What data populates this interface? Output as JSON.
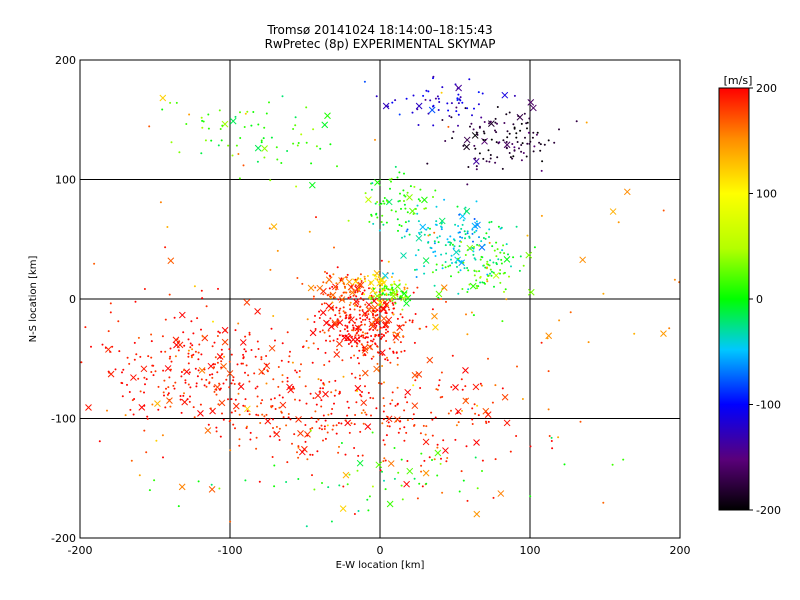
{
  "chart_data": {
    "type": "scatter",
    "title": "Tromsø 20141024 18:14:00–18:15:43",
    "subtitle": "RwPretec (8p) EXPERIMENTAL SKYMAP",
    "xlabel": "E-W location [km]",
    "ylabel": "N-S location [km]",
    "xlim": [
      -200,
      200
    ],
    "ylim": [
      -200,
      200
    ],
    "xticks": [
      "-200",
      "-100",
      "0",
      "100",
      "200"
    ],
    "yticks": [
      "-200",
      "-100",
      "0",
      "100",
      "200"
    ],
    "grid": true,
    "colorbar": {
      "label": "[m/s]",
      "range": [
        -200,
        200
      ],
      "ticks": [
        "200",
        "100",
        "0",
        "-100",
        "-200"
      ]
    },
    "point_groups": [
      {
        "center_x": -10,
        "center_y": -20,
        "spread_x": 25,
        "spread_y": 25,
        "count": 320,
        "velocity": 195
      },
      {
        "center_x": -120,
        "center_y": -60,
        "spread_x": 55,
        "spread_y": 45,
        "count": 280,
        "velocity": 195
      },
      {
        "center_x": -40,
        "center_y": -90,
        "spread_x": 60,
        "spread_y": 40,
        "count": 200,
        "velocity": 190
      },
      {
        "center_x": 30,
        "center_y": -100,
        "spread_x": 60,
        "spread_y": 50,
        "count": 140,
        "velocity": 190
      },
      {
        "center_x": -30,
        "center_y": 10,
        "spread_x": 20,
        "spread_y": 15,
        "count": 70,
        "velocity": 180
      },
      {
        "center_x": 0,
        "center_y": 10,
        "spread_x": 12,
        "spread_y": 10,
        "count": 60,
        "velocity": 120
      },
      {
        "center_x": 10,
        "center_y": 5,
        "spread_x": 10,
        "spread_y": 8,
        "count": 60,
        "velocity": 20
      },
      {
        "center_x": 50,
        "center_y": 45,
        "spread_x": 30,
        "spread_y": 25,
        "count": 160,
        "velocity": -40
      },
      {
        "center_x": 70,
        "center_y": 25,
        "spread_x": 25,
        "spread_y": 20,
        "count": 80,
        "velocity": 20
      },
      {
        "center_x": 10,
        "center_y": 80,
        "spread_x": 20,
        "spread_y": 20,
        "count": 70,
        "velocity": 10
      },
      {
        "center_x": 80,
        "center_y": 135,
        "spread_x": 30,
        "spread_y": 20,
        "count": 120,
        "velocity": -180
      },
      {
        "center_x": 40,
        "center_y": 165,
        "spread_x": 30,
        "spread_y": 15,
        "count": 60,
        "velocity": -120
      },
      {
        "center_x": -80,
        "center_y": 140,
        "spread_x": 50,
        "spread_y": 25,
        "count": 70,
        "velocity": 10
      },
      {
        "center_x": 0,
        "center_y": -20,
        "spread_x": 180,
        "spread_y": 160,
        "count": 120,
        "velocity": 150
      },
      {
        "center_x": 0,
        "center_y": -150,
        "spread_x": 120,
        "spread_y": 30,
        "count": 60,
        "velocity": 0
      }
    ]
  }
}
